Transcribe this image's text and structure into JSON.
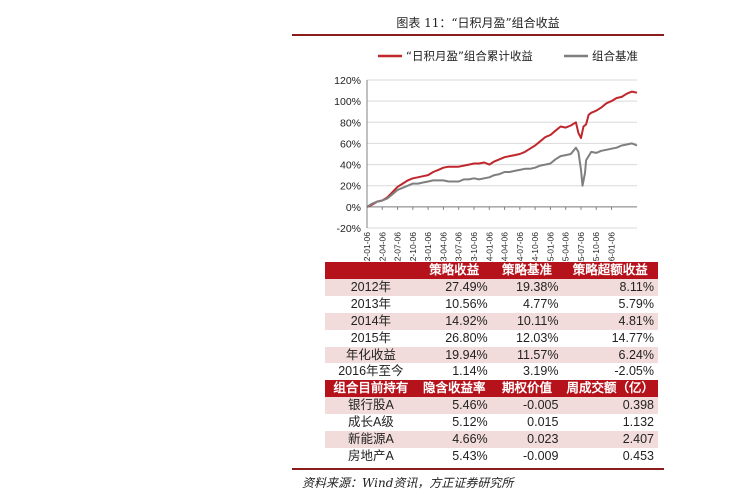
{
  "figure": {
    "title": "图表 11：“日积月盈”组合收益",
    "source": "资料来源：Wind资讯，方正证券研究所"
  },
  "chart_data": {
    "type": "line",
    "legend_position": "top",
    "grid": true,
    "ylim": [
      -20,
      120
    ],
    "y_ticks": [
      "-20%",
      "0%",
      "20%",
      "40%",
      "60%",
      "80%",
      "100%",
      "120%"
    ],
    "y_tick_values": [
      -20,
      0,
      20,
      40,
      60,
      80,
      100,
      120
    ],
    "x_ticks": [
      "2012-01-06",
      "2012-04-06",
      "2012-07-06",
      "2012-10-06",
      "2013-01-06",
      "2013-04-06",
      "2013-07-06",
      "2013-10-06",
      "2014-01-06",
      "2014-04-06",
      "2014-07-06",
      "2014-10-06",
      "2015-01-06",
      "2015-04-06",
      "2015-07-06",
      "2015-10-06",
      "2016-01-06"
    ],
    "x_months": [
      0,
      3,
      6,
      9,
      12,
      15,
      18,
      21,
      24,
      27,
      30,
      33,
      36,
      39,
      42,
      45,
      48
    ],
    "x_range_months": [
      0,
      53
    ],
    "series": [
      {
        "name": "“日积月盈”组合累计收益",
        "color": "#c0272d",
        "points": [
          [
            0,
            0
          ],
          [
            1,
            2
          ],
          [
            2,
            5
          ],
          [
            3,
            6
          ],
          [
            4,
            9
          ],
          [
            5,
            14
          ],
          [
            6,
            19
          ],
          [
            7,
            22
          ],
          [
            8,
            25
          ],
          [
            9,
            27
          ],
          [
            10,
            28
          ],
          [
            11,
            29
          ],
          [
            12,
            30
          ],
          [
            13,
            33
          ],
          [
            14,
            35
          ],
          [
            15,
            37
          ],
          [
            16,
            38
          ],
          [
            17,
            38
          ],
          [
            18,
            38
          ],
          [
            19,
            39
          ],
          [
            20,
            40
          ],
          [
            21,
            41
          ],
          [
            22,
            41
          ],
          [
            23,
            42
          ],
          [
            24,
            40
          ],
          [
            25,
            43
          ],
          [
            26,
            45
          ],
          [
            27,
            47
          ],
          [
            28,
            48
          ],
          [
            29,
            49
          ],
          [
            30,
            50
          ],
          [
            31,
            52
          ],
          [
            32,
            55
          ],
          [
            33,
            58
          ],
          [
            34,
            62
          ],
          [
            35,
            66
          ],
          [
            36,
            68
          ],
          [
            37,
            72
          ],
          [
            38,
            76
          ],
          [
            39,
            75
          ],
          [
            40,
            77
          ],
          [
            41,
            80
          ],
          [
            41.5,
            70
          ],
          [
            42,
            65
          ],
          [
            42.5,
            76
          ],
          [
            43,
            78
          ],
          [
            43.5,
            87
          ],
          [
            44,
            89
          ],
          [
            45,
            91
          ],
          [
            46,
            94
          ],
          [
            47,
            98
          ],
          [
            48,
            100
          ],
          [
            49,
            103
          ],
          [
            50,
            104
          ],
          [
            51,
            107
          ],
          [
            52,
            109
          ],
          [
            53,
            108
          ]
        ]
      },
      {
        "name": "组合基准",
        "color": "#7f7f7f",
        "points": [
          [
            0,
            0
          ],
          [
            1,
            3
          ],
          [
            2,
            5
          ],
          [
            3,
            6
          ],
          [
            4,
            8
          ],
          [
            5,
            12
          ],
          [
            6,
            16
          ],
          [
            7,
            18
          ],
          [
            8,
            20
          ],
          [
            9,
            22
          ],
          [
            10,
            22
          ],
          [
            11,
            23
          ],
          [
            12,
            24
          ],
          [
            13,
            25
          ],
          [
            14,
            25
          ],
          [
            15,
            25
          ],
          [
            16,
            24
          ],
          [
            17,
            24
          ],
          [
            18,
            24
          ],
          [
            19,
            26
          ],
          [
            20,
            26
          ],
          [
            21,
            27
          ],
          [
            22,
            26
          ],
          [
            23,
            27
          ],
          [
            24,
            28
          ],
          [
            25,
            30
          ],
          [
            26,
            31
          ],
          [
            27,
            33
          ],
          [
            28,
            33
          ],
          [
            29,
            34
          ],
          [
            30,
            35
          ],
          [
            31,
            36
          ],
          [
            32,
            36
          ],
          [
            33,
            37
          ],
          [
            34,
            39
          ],
          [
            35,
            40
          ],
          [
            36,
            41
          ],
          [
            37,
            45
          ],
          [
            38,
            48
          ],
          [
            39,
            49
          ],
          [
            40,
            50
          ],
          [
            41,
            56
          ],
          [
            41.5,
            52
          ],
          [
            42,
            35
          ],
          [
            42.3,
            20
          ],
          [
            42.8,
            32
          ],
          [
            43,
            44
          ],
          [
            43.5,
            48
          ],
          [
            44,
            52
          ],
          [
            45,
            51
          ],
          [
            46,
            53
          ],
          [
            47,
            54
          ],
          [
            48,
            55
          ],
          [
            49,
            56
          ],
          [
            50,
            58
          ],
          [
            51,
            59
          ],
          [
            52,
            60
          ],
          [
            53,
            58
          ]
        ]
      }
    ]
  },
  "table": {
    "header1": [
      "",
      "策略收益",
      "策略基准",
      "策略超额收益"
    ],
    "rows1": [
      [
        "2012年",
        "27.49%",
        "19.38%",
        "8.11%"
      ],
      [
        "2013年",
        "10.56%",
        "4.77%",
        "5.79%"
      ],
      [
        "2014年",
        "14.92%",
        "10.11%",
        "4.81%"
      ],
      [
        "2015年",
        "26.80%",
        "12.03%",
        "14.77%"
      ],
      [
        "年化收益",
        "19.94%",
        "11.57%",
        "6.24%"
      ],
      [
        "2016年至今",
        "1.14%",
        "3.19%",
        "-2.05%"
      ]
    ],
    "header2": [
      "组合目前持有",
      "隐含收益率",
      "期权价值",
      "周成交额（亿）"
    ],
    "rows2": [
      [
        "银行股A",
        "5.46%",
        "-0.005",
        "0.398"
      ],
      [
        "成长A级",
        "5.12%",
        "0.015",
        "1.132"
      ],
      [
        "新能源A",
        "4.66%",
        "0.023",
        "2.407"
      ],
      [
        "房地产A",
        "5.43%",
        "-0.009",
        "0.453"
      ]
    ]
  }
}
